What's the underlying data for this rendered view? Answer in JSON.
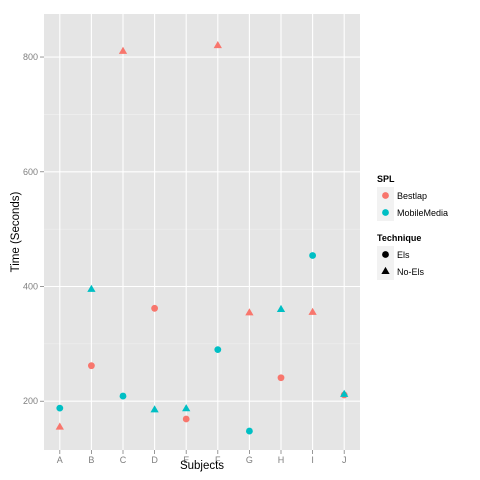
{
  "chart_data": {
    "type": "scatter",
    "title": "",
    "xlabel": "Subjects",
    "ylabel": "Time (Seconds)",
    "categories": [
      "A",
      "B",
      "C",
      "D",
      "E",
      "F",
      "G",
      "H",
      "I",
      "J"
    ],
    "ylim": [
      115,
      875
    ],
    "yticks": [
      200,
      400,
      600,
      800
    ],
    "grid": true,
    "legend_position": "right",
    "legends": [
      {
        "title": "SPL",
        "entries": [
          {
            "label": "Bestlap",
            "color": "#F8766D"
          },
          {
            "label": "MobileMedia",
            "color": "#00BFC4"
          }
        ]
      },
      {
        "title": "Technique",
        "entries": [
          {
            "label": "Els",
            "shape": "circle"
          },
          {
            "label": "No-Els",
            "shape": "triangle"
          }
        ]
      }
    ],
    "points": [
      {
        "x": "A",
        "y": 188,
        "spl": "MobileMedia",
        "technique": "Els"
      },
      {
        "x": "A",
        "y": 155,
        "spl": "Bestlap",
        "technique": "No-Els"
      },
      {
        "x": "B",
        "y": 262,
        "spl": "Bestlap",
        "technique": "Els"
      },
      {
        "x": "B",
        "y": 395,
        "spl": "MobileMedia",
        "technique": "No-Els"
      },
      {
        "x": "C",
        "y": 209,
        "spl": "MobileMedia",
        "technique": "Els"
      },
      {
        "x": "C",
        "y": 810,
        "spl": "Bestlap",
        "technique": "No-Els"
      },
      {
        "x": "D",
        "y": 362,
        "spl": "Bestlap",
        "technique": "Els"
      },
      {
        "x": "D",
        "y": 185,
        "spl": "MobileMedia",
        "technique": "No-Els"
      },
      {
        "x": "E",
        "y": 169,
        "spl": "Bestlap",
        "technique": "Els"
      },
      {
        "x": "E",
        "y": 187,
        "spl": "MobileMedia",
        "technique": "No-Els"
      },
      {
        "x": "F",
        "y": 290,
        "spl": "MobileMedia",
        "technique": "Els"
      },
      {
        "x": "F",
        "y": 820,
        "spl": "Bestlap",
        "technique": "No-Els"
      },
      {
        "x": "G",
        "y": 148,
        "spl": "MobileMedia",
        "technique": "Els"
      },
      {
        "x": "G",
        "y": 354,
        "spl": "Bestlap",
        "technique": "No-Els"
      },
      {
        "x": "H",
        "y": 241,
        "spl": "Bestlap",
        "technique": "Els"
      },
      {
        "x": "H",
        "y": 360,
        "spl": "MobileMedia",
        "technique": "No-Els"
      },
      {
        "x": "I",
        "y": 454,
        "spl": "MobileMedia",
        "technique": "Els"
      },
      {
        "x": "I",
        "y": 355,
        "spl": "Bestlap",
        "technique": "No-Els"
      },
      {
        "x": "J",
        "y": 211,
        "spl": "Bestlap",
        "technique": "Els"
      },
      {
        "x": "J",
        "y": 212,
        "spl": "MobileMedia",
        "technique": "No-Els"
      }
    ],
    "colors": {
      "panel": "#E5E5E5",
      "grid_major": "#FFFFFF",
      "grid_minor": "#F2F2F2",
      "legend_key": "#F2F2F2",
      "shape_legend": "#000000"
    }
  }
}
